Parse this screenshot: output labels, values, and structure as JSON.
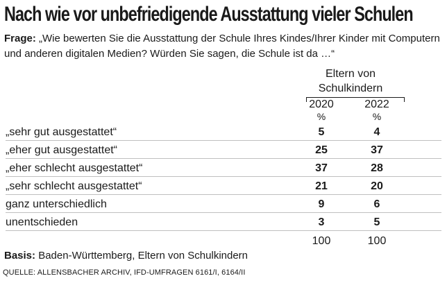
{
  "title": "Nach wie vor unbefriedigende Ausstattung vieler Schulen",
  "question": {
    "label": "Frage:",
    "text": "„Wie bewerten Sie die Ausstattung der Schule Ihres Kindes/Ihrer Kinder mit Computern und anderen digitalen Medien? Würden Sie sagen, die Schule ist da …“"
  },
  "group_header": "Eltern von Schulkindern",
  "basis": {
    "label": "Basis:",
    "text": "Baden-Württemberg, Eltern von Schulkindern"
  },
  "source": "QUELLE: ALLENSBACHER ARCHIV, IFD-UMFRAGEN 6161/I, 6164/II",
  "chart_data": {
    "type": "table",
    "title": "Nach wie vor unbefriedigende Ausstattung vieler Schulen",
    "columns": [
      "2020",
      "2022"
    ],
    "unit": "%",
    "rows": [
      {
        "label": "„sehr gut ausgestattet“",
        "values": [
          "5",
          "4"
        ]
      },
      {
        "label": "„eher gut ausgestattet“",
        "values": [
          "25",
          "37"
        ]
      },
      {
        "label": "„eher schlecht ausgestattet“",
        "values": [
          "37",
          "28"
        ]
      },
      {
        "label": "„sehr schlecht ausgestattet“",
        "values": [
          "21",
          "20"
        ]
      },
      {
        "label": "ganz unterschiedlich",
        "values": [
          "9",
          "6"
        ]
      },
      {
        "label": "unentschieden",
        "values": [
          "3",
          "5"
        ]
      }
    ],
    "totals": [
      "100",
      "100"
    ]
  }
}
